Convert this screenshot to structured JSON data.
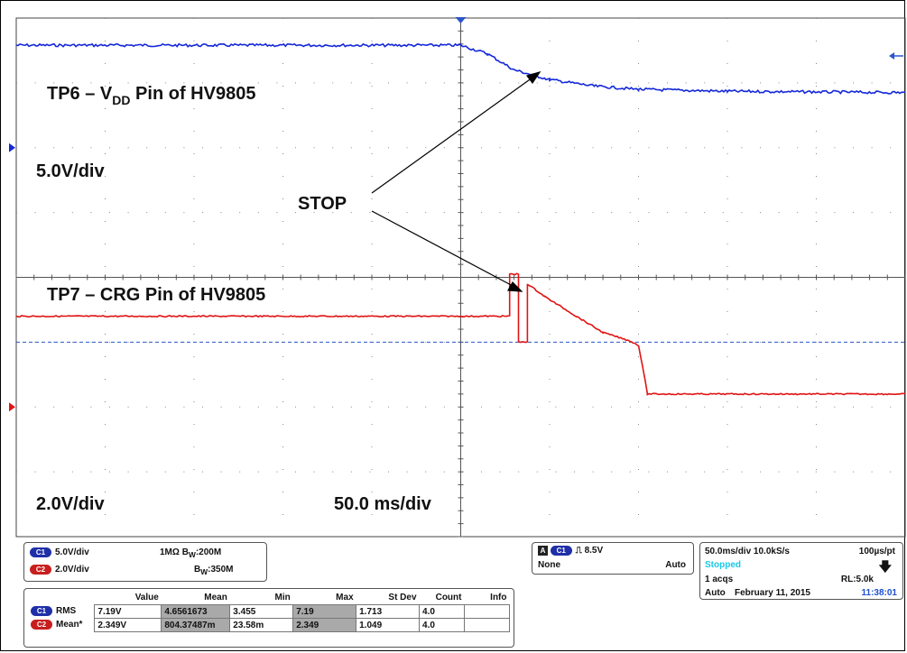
{
  "colors": {
    "ch1": "#1428d8",
    "ch2": "#e01414",
    "grid": "#888888",
    "cursor": "#2c55c8"
  },
  "annotations": {
    "tp6_prefix": "TP6 – V",
    "tp6_sub": "DD",
    "tp6_suffix": " Pin of HV9805",
    "ch1_scale": "5.0V/div",
    "stop": "STOP",
    "tp7": "TP7 – CRG Pin of HV9805",
    "ch2_scale": "2.0V/div",
    "time_scale": "50.0 ms/div"
  },
  "chart_data": {
    "type": "line",
    "grid": {
      "x_divisions": 10,
      "y_divisions": 8
    },
    "xlabel": "",
    "ylabel": "",
    "series": [
      {
        "name": "TP6 – VDD Pin of HV9805",
        "points_div": [
          [
            0,
            3.58
          ],
          [
            5.0,
            3.58
          ],
          [
            5.3,
            3.45
          ],
          [
            5.6,
            3.2
          ],
          [
            6.0,
            3.05
          ],
          [
            6.5,
            2.95
          ],
          [
            7.0,
            2.9
          ],
          [
            8.0,
            2.87
          ],
          [
            10.0,
            2.85
          ]
        ]
      },
      {
        "name": "TP7 – CRG Pin of HV9805",
        "points_div": [
          [
            0,
            -0.6
          ],
          [
            5.55,
            -0.6
          ],
          [
            5.55,
            0.05
          ],
          [
            5.65,
            0.05
          ],
          [
            5.65,
            -1.0
          ],
          [
            5.75,
            -1.0
          ],
          [
            5.75,
            -0.1
          ],
          [
            5.95,
            -0.3
          ],
          [
            6.3,
            -0.6
          ],
          [
            6.6,
            -0.85
          ],
          [
            6.9,
            -0.98
          ],
          [
            7.0,
            -1.05
          ],
          [
            7.05,
            -1.4
          ],
          [
            7.1,
            -1.8
          ],
          [
            10.0,
            -1.8
          ]
        ]
      }
    ]
  },
  "status_panel": {
    "ch1_badge": "C1",
    "ch1_scale": "5.0V/div",
    "ch1_imp": "1MΩ",
    "ch1_bw_prefix": "B",
    "ch1_bw_sub": "W",
    "ch1_bw": ":200M",
    "ch2_badge": "C2",
    "ch2_scale": "2.0V/div",
    "ch2_bw_prefix": "B",
    "ch2_bw_sub": "W",
    "ch2_bw": ":350M"
  },
  "trigger_panel": {
    "mode_badge": "A",
    "source_badge": "C1",
    "edge": "⎍",
    "level": "8.5V",
    "coupling": "None",
    "mode": "Auto"
  },
  "acq_panel": {
    "timebase": "50.0ms/div 10.0kS/s",
    "res": "100µs/pt",
    "state": "Stopped",
    "acqs": "1 acqs",
    "rl": "RL:5.0k",
    "mode": "Auto",
    "date": "February 11, 2015",
    "time": "11:38:01"
  },
  "measurements": {
    "headers": [
      "",
      "Value",
      "Mean",
      "Min",
      "Max",
      "St Dev",
      "Count",
      "Info"
    ],
    "rows": [
      {
        "badge": "C1",
        "name": "RMS",
        "cells": [
          "7.19V",
          "4.6561673",
          "3.455",
          "7.19",
          "1.713",
          "4.0",
          ""
        ]
      },
      {
        "badge": "C2",
        "name": "Mean*",
        "cells": [
          "2.349V",
          "804.37487m",
          "23.58m",
          "2.349",
          "1.049",
          "4.0",
          ""
        ]
      }
    ]
  }
}
